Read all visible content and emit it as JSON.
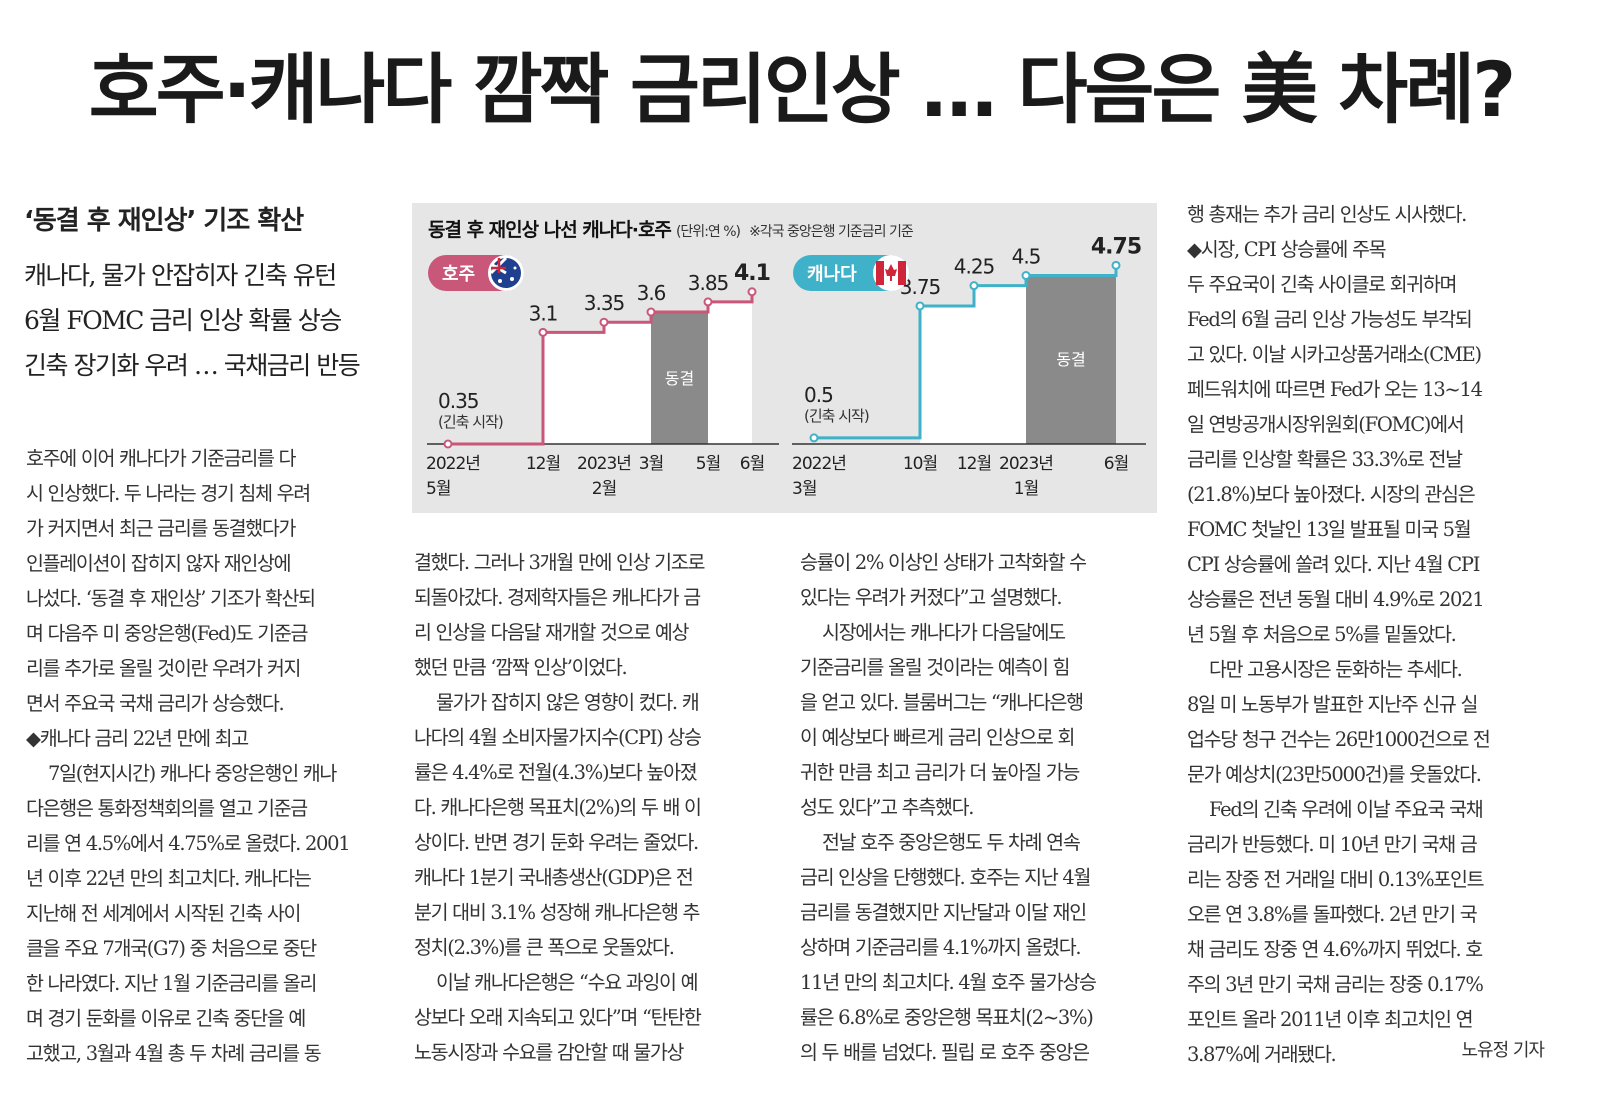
{
  "headline": "호주·캐나다 깜짝 금리인상 … 다음은 美 차례?",
  "subheads": {
    "sub1": "‘동결 후 재인상’ 기조 확산",
    "lines": [
      "캐나다, 물가 안잡히자 긴축 유턴",
      "6월 FOMC 금리 인상 확률 상승",
      "긴축 장기화 우려 … 국채금리 반등"
    ]
  },
  "chart": {
    "title": "동결 후 재인상 나선 캐나다·호주",
    "unit": "(단위:연 %)",
    "note": "※각국 중앙은행 기준금리 기준",
    "colors": {
      "australia": "#c9577a",
      "canada": "#3fb1c8",
      "freeze": "#8a8a8a"
    }
  },
  "chart_data": [
    {
      "type": "line",
      "step": true,
      "country": "호주",
      "x_labels": [
        [
          "2022년",
          "5월"
        ],
        [
          "12월"
        ],
        [
          "2023년",
          "2월"
        ],
        [
          "3월"
        ],
        [
          "5월"
        ],
        [
          "6월"
        ]
      ],
      "values": [
        0.35,
        3.1,
        3.35,
        3.6,
        3.85,
        4.1
      ],
      "value_labels": [
        "0.35",
        "3.1",
        "3.35",
        "3.6",
        "3.85",
        "4.1"
      ],
      "start_note": "(긴축 시작)",
      "freeze_label": "동결",
      "freeze_between": [
        "3월",
        "5월"
      ]
    },
    {
      "type": "line",
      "step": true,
      "country": "캐나다",
      "x_labels": [
        [
          "2022년",
          "3월"
        ],
        [
          "10월"
        ],
        [
          "12월"
        ],
        [
          "2023년",
          "1월"
        ],
        [
          "6월"
        ]
      ],
      "values": [
        0.5,
        3.75,
        4.25,
        4.5,
        4.75
      ],
      "value_labels": [
        "0.5",
        "3.75",
        "4.25",
        "4.5",
        "4.75"
      ],
      "start_note": "(긴축 시작)",
      "freeze_label": "동결",
      "freeze_between": [
        "1월",
        "6월"
      ]
    }
  ],
  "col1": [
    "호주에 이어 캐나다가 기준금리를 다",
    "시 인상했다. 두 나라는 경기 침체 우려",
    "가 커지면서 최근 금리를 동결했다가",
    "인플레이션이 잡히지 않자 재인상에",
    "나섰다. ‘동결 후 재인상’ 기조가 확산되",
    "며 다음주 미 중앙은행(Fed)도 기준금",
    "리를 추가로 올릴 것이란 우려가 커지",
    "면서 주요국 국채 금리가 상승했다.",
    "◆캐나다 금리 22년 만에 최고",
    "7일(현지시간) 캐나다 중앙은행인 캐나",
    "다은행은 통화정책회의를 열고 기준금",
    "리를 연 4.5%에서 4.75%로 올렸다. 2001",
    "년 이후 22년 만의 최고치다. 캐나다는",
    "지난해 전 세계에서 시작된 긴축 사이",
    "클을 주요 7개국(G7) 중 처음으로 중단",
    "한 나라였다. 지난 1월 기준금리를 올리",
    "며 경기 둔화를 이유로 긴축 중단을 예",
    "고했고, 3월과 4월 총 두 차례 금리를 동"
  ],
  "col2": [
    "결했다. 그러나 3개월 만에 인상 기조로",
    "되돌아갔다. 경제학자들은 캐나다가 금",
    "리 인상을 다음달 재개할 것으로 예상",
    "했던 만큼 ‘깜짝 인상’이었다.",
    "물가가 잡히지 않은 영향이 컸다. 캐",
    "나다의 4월 소비자물가지수(CPI) 상승",
    "률은 4.4%로 전월(4.3%)보다 높아졌",
    "다. 캐나다은행 목표치(2%)의 두 배 이",
    "상이다. 반면 경기 둔화 우려는 줄었다.",
    "캐나다 1분기 국내총생산(GDP)은 전",
    "분기 대비 3.1% 성장해 캐나다은행 추",
    "정치(2.3%)를 큰 폭으로 웃돌았다.",
    "이날 캐나다은행은 “수요 과잉이 예",
    "상보다 오래 지속되고 있다”며 “탄탄한",
    "노동시장과 수요를 감안할 때 물가상"
  ],
  "col3": [
    "승률이 2% 이상인 상태가 고착화할 수",
    "있다는 우려가 커졌다”고 설명했다.",
    "시장에서는 캐나다가 다음달에도",
    "기준금리를 올릴 것이라는 예측이 힘",
    "을 얻고 있다. 블룸버그는 “캐나다은행",
    "이 예상보다 빠르게 금리 인상으로 회",
    "귀한 만큼 최고 금리가 더 높아질 가능",
    "성도 있다”고 추측했다.",
    "전날 호주 중앙은행도 두 차례 연속",
    "금리 인상을 단행했다. 호주는 지난 4월",
    "금리를 동결했지만 지난달과 이달 재인",
    "상하며 기준금리를 4.1%까지 올렸다.",
    "11년 만의 최고치다. 4월 호주 물가상승",
    "률은 6.8%로 중앙은행 목표치(2~3%)",
    "의 두 배를 넘었다. 필립 로 호주 중앙은"
  ],
  "col4": [
    "행 총재는 추가 금리 인상도 시사했다.",
    "◆시장, CPI 상승률에 주목",
    "두 주요국이 긴축 사이클로 회귀하며",
    "Fed의 6월 금리 인상 가능성도 부각되",
    "고 있다. 이날 시카고상품거래소(CME)",
    "페드워치에 따르면 Fed가 오는 13~14",
    "일 연방공개시장위원회(FOMC)에서",
    "금리를 인상할 확률은 33.3%로 전날",
    "(21.8%)보다 높아졌다. 시장의 관심은",
    "FOMC 첫날인 13일 발표될 미국 5월",
    "CPI 상승률에 쏠려 있다. 지난 4월 CPI",
    "상승률은 전년 동월 대비 4.9%로 2021",
    "년 5월 후 처음으로 5%를 밑돌았다.",
    "다만 고용시장은 둔화하는 추세다.",
    "8일 미 노동부가 발표한 지난주 신규 실",
    "업수당 청구 건수는 26만1000건으로 전",
    "문가 예상치(23만5000건)를 웃돌았다.",
    "Fed의 긴축 우려에 이날 주요국 국채",
    "금리가 반등했다. 미 10년 만기 국채 금",
    "리는 장중 전 거래일 대비 0.13%포인트",
    "오른 연 3.8%를 돌파했다. 2년 만기 국",
    "채 금리도 장중 연 4.6%까지 뛰었다. 호",
    "주의 3년 만기 국채 금리는 장중 0.17%",
    "포인트 올라 2011년 이후 최고치인 연",
    "3.87%에 거래됐다."
  ],
  "reporter": "노유정 기자"
}
